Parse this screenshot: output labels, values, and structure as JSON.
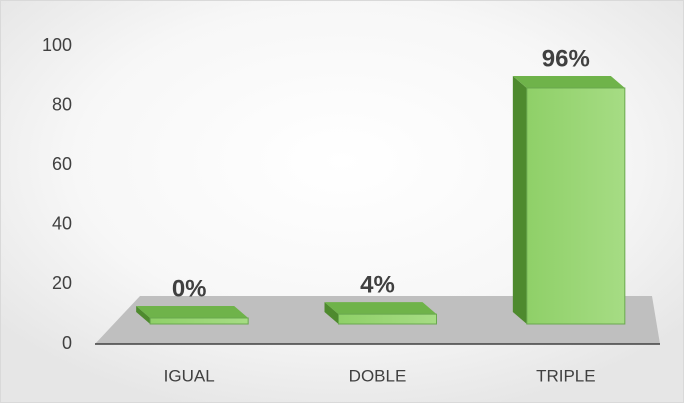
{
  "chart_data": {
    "type": "bar3d",
    "categories": [
      "IGUAL",
      "DOBLE",
      "TRIPLE"
    ],
    "values": [
      0,
      4,
      96
    ],
    "value_labels": [
      "0%",
      "4%",
      "96%"
    ],
    "color": "#7fc35a",
    "ylim": [
      0,
      100
    ],
    "yticks": [
      0,
      20,
      40,
      60,
      80,
      100
    ],
    "grid": false
  }
}
